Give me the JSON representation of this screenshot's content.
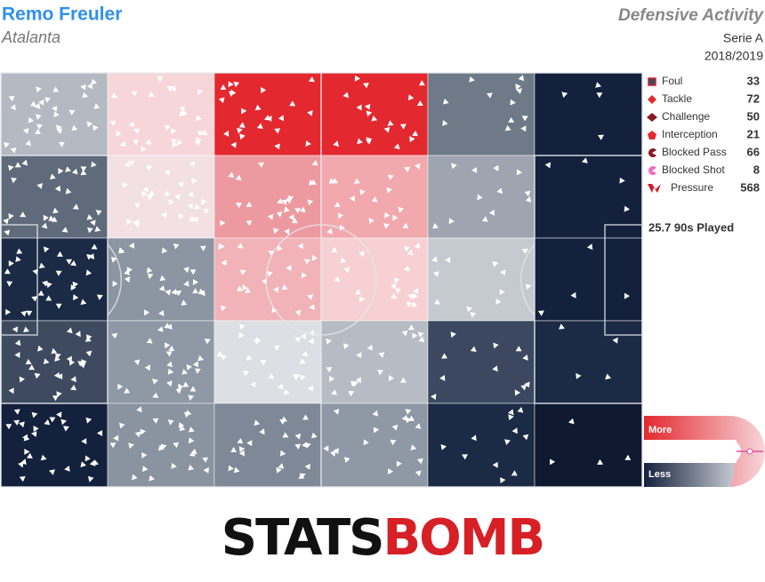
{
  "header": {
    "player": "Remo Freuler",
    "team": "Atalanta",
    "title": "Defensive Activity",
    "competition": "Serie A",
    "season": "2018/2019"
  },
  "legend": [
    {
      "label": "Foul",
      "count": 33
    },
    {
      "label": "Tackle",
      "count": 72
    },
    {
      "label": "Challenge",
      "count": 50
    },
    {
      "label": "Interception",
      "count": 21
    },
    {
      "label": "Blocked Pass",
      "count": 66
    },
    {
      "label": "Blocked Shot",
      "count": 8
    },
    {
      "label": "Pressure",
      "count": 568
    }
  ],
  "played": "25.7 90s Played",
  "scale": {
    "more": "More",
    "less": "Less"
  },
  "zones": [
    [
      "#b4b9c2",
      "#f7d6da",
      "#e3282f",
      "#e3282f",
      "#6f7a88",
      "#14213d"
    ],
    [
      "#5f6b7b",
      "#f2e0e3",
      "#ec9aa0",
      "#f1a9ae",
      "#9ea5b0",
      "#14213d"
    ],
    [
      "#1b2a45",
      "#8c95a2",
      "#f1b3b8",
      "#f6d0d3",
      "#c5c9d0",
      "#14213d"
    ],
    [
      "#3d4a60",
      "#8f98a5",
      "#dcdfe3",
      "#b7bcc4",
      "#3b4860",
      "#1b2a45"
    ],
    [
      "#14213d",
      "#8a93a0",
      "#7f8896",
      "#8f98a5",
      "#1b2a45",
      "#0f1a30"
    ]
  ],
  "logo": {
    "left": "STATS",
    "right": "BOMB"
  }
}
